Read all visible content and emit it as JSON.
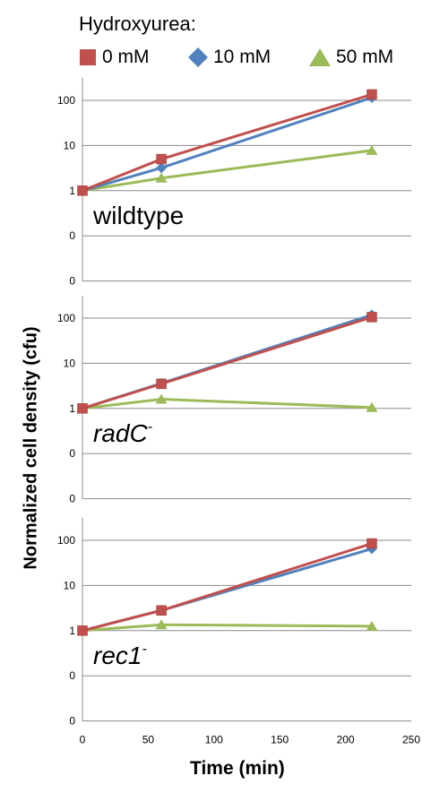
{
  "chart_data": {
    "type": "line",
    "legend": {
      "title": "Hydroxyurea:",
      "items": [
        {
          "label": "0 mM",
          "color": "#c0504d",
          "marker": "square"
        },
        {
          "label": "10 mM",
          "color": "#4f81bd",
          "marker": "diamond"
        },
        {
          "label": "50 mM",
          "color": "#9bbb59",
          "marker": "triangle"
        }
      ],
      "placement": "top"
    },
    "ylabel": "Normalized cell density (cfu)",
    "xlabel": "Time (min)",
    "x_ticks": [
      "0",
      "50",
      "100",
      "150",
      "200",
      "250"
    ],
    "xlim": [
      0,
      250
    ],
    "y_scale": "log",
    "y_ticks": [
      "100",
      "10",
      "1",
      "0",
      "0"
    ],
    "grid": true,
    "panels": [
      {
        "name": "wildtype",
        "name_style": "normal",
        "name_sup": "",
        "x": [
          0,
          60,
          220
        ],
        "series": [
          {
            "name": "0 mM",
            "values": [
              1,
              5,
              135
            ]
          },
          {
            "name": "10 mM",
            "values": [
              1,
              3.2,
              115
            ]
          },
          {
            "name": "50 mM",
            "values": [
              1,
              1.9,
              7.8
            ]
          }
        ]
      },
      {
        "name": "radC",
        "name_style": "italic",
        "name_sup": "-",
        "x": [
          0,
          60,
          220
        ],
        "series": [
          {
            "name": "0 mM",
            "values": [
              1,
              3.5,
              105
            ]
          },
          {
            "name": "10 mM",
            "values": [
              1,
              3.6,
              118
            ]
          },
          {
            "name": "50 mM",
            "values": [
              1,
              1.6,
              1.05
            ]
          }
        ]
      },
      {
        "name": "rec1",
        "name_style": "italic",
        "name_sup": "-",
        "x": [
          0,
          60,
          220
        ],
        "series": [
          {
            "name": "0 mM",
            "values": [
              1,
              2.8,
              85
            ]
          },
          {
            "name": "10 mM",
            "values": [
              1,
              2.8,
              65
            ]
          },
          {
            "name": "50 mM",
            "values": [
              1,
              1.35,
              1.25
            ]
          }
        ]
      }
    ]
  }
}
